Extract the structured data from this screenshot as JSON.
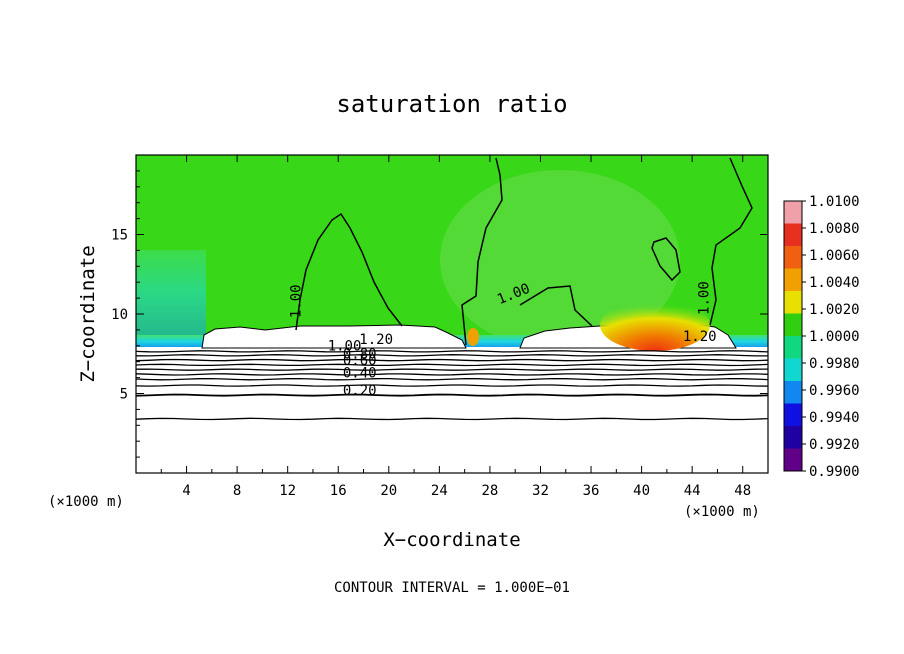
{
  "chart_data": {
    "type": "heatmap",
    "title": "saturation ratio",
    "xlabel": "X−coordinate",
    "ylabel": "Z−coordinate",
    "x_unit": "(×1000 m)",
    "y_unit": "(×1000 m)",
    "footer": "CONTOUR INTERVAL = 1.000E−01",
    "xlim": [
      0,
      50
    ],
    "ylim": [
      0,
      20
    ],
    "x_ticks": [
      4,
      8,
      12,
      16,
      20,
      24,
      28,
      32,
      36,
      40,
      44,
      48
    ],
    "x_tick_labels": [
      "4",
      "8",
      "12",
      "16",
      "20",
      "24",
      "28",
      "32",
      "36",
      "40",
      "44",
      "48"
    ],
    "y_ticks": [
      5,
      10,
      15
    ],
    "y_tick_labels": [
      "5",
      "10",
      "15"
    ],
    "colorbar": {
      "min": 0.99,
      "max": 1.01,
      "ticks": [
        1.01,
        1.008,
        1.006,
        1.004,
        1.002,
        1.0,
        0.998,
        0.996,
        0.994,
        0.992,
        0.99
      ],
      "labels": [
        "1.0100",
        "1.0080",
        "1.0060",
        "1.0040",
        "1.0020",
        "1.0000",
        "0.9980",
        "0.9960",
        "0.9940",
        "0.9920",
        "0.9900"
      ],
      "colors": [
        "#f0a0a8",
        "#e83020",
        "#f06010",
        "#f0a000",
        "#e8e000",
        "#30d010",
        "#10d880",
        "#10d8d0",
        "#1088f0",
        "#1010e0",
        "#2000a0",
        "#600088"
      ]
    },
    "fill_colors": {
      "field": "#38d818",
      "field_light": "#88e070",
      "boundary_cyan": "#20d8e0",
      "boundary_blue": "#1090f0",
      "peak_yellow": "#e8e800",
      "peak_orange": "#f08000",
      "peak_red": "#f03010",
      "unsaturated": "#ffffff"
    },
    "contour_labels": [
      {
        "text": "1.00",
        "x": 13,
        "y": 10.8,
        "rotate": -90
      },
      {
        "text": "1.00",
        "x": 30,
        "y": 11.0,
        "rotate": -22
      },
      {
        "text": "1.00",
        "x": 45.3,
        "y": 11.0,
        "rotate": -90
      },
      {
        "text": "1.20",
        "x": 19,
        "y": 8.1,
        "rotate": 0
      },
      {
        "text": "1.20",
        "x": 44.6,
        "y": 8.3,
        "rotate": 0
      },
      {
        "text": "1.00",
        "x": 16.5,
        "y": 7.7,
        "rotate": 0
      },
      {
        "text": "0.80",
        "x": 17.7,
        "y": 7.2,
        "rotate": 0
      },
      {
        "text": "0.60",
        "x": 17.7,
        "y": 6.8,
        "rotate": 0
      },
      {
        "text": "0.40",
        "x": 17.7,
        "y": 6.0,
        "rotate": 0
      },
      {
        "text": "0.20",
        "x": 17.7,
        "y": 4.9,
        "rotate": 0
      }
    ]
  }
}
